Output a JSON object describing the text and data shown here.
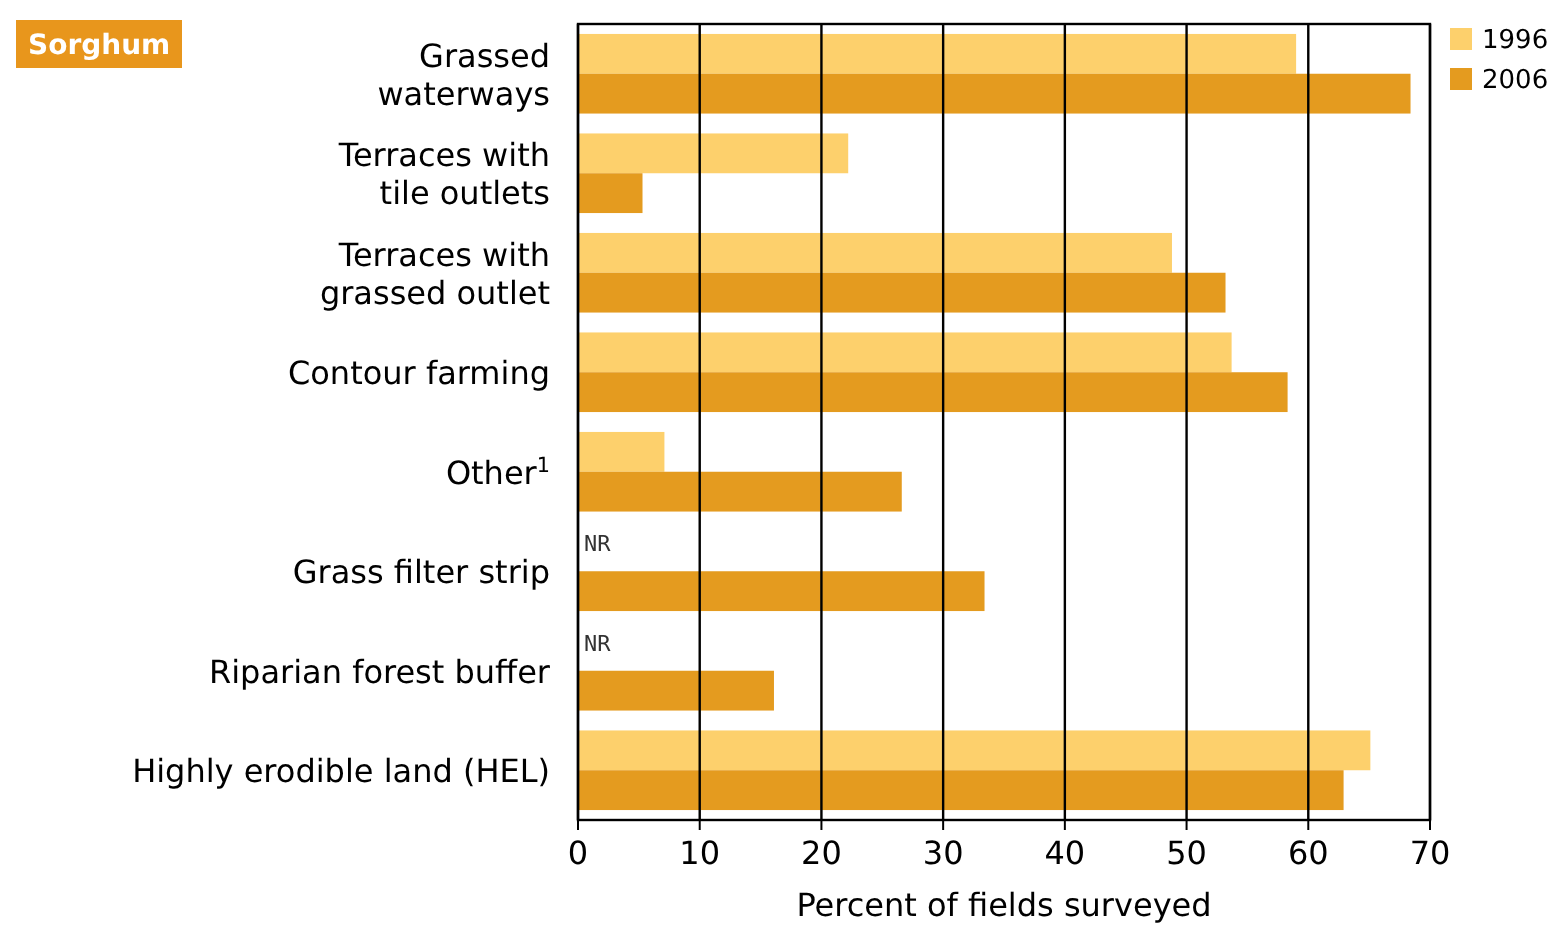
{
  "chart_data": {
    "type": "bar",
    "orientation": "horizontal",
    "title": "Sorghum",
    "xlabel": "Percent of fields surveyed",
    "categories": [
      "Grassed\nwaterways",
      "Terraces with\ntile outlets",
      "Terraces with\ngrassed outlet",
      "Contour farming",
      "Other$^{1}$",
      "Grass filter strip",
      "Riparian forest buffer",
      "Highly erodible land (HEL)"
    ],
    "series": [
      {
        "name": "1996",
        "color": "#fdd06c",
        "values": [
          59,
          22.2,
          48.8,
          53.7,
          7.1,
          null,
          null,
          65.1
        ],
        "value_labels": [
          null,
          null,
          null,
          null,
          null,
          "NR",
          "NR",
          null
        ]
      },
      {
        "name": "2006",
        "color": "#e49b1f",
        "values": [
          68.4,
          5.3,
          53.2,
          58.3,
          26.6,
          33.4,
          16.1,
          62.9
        ]
      }
    ],
    "xlim": [
      0,
      70
    ],
    "xticks": [
      0,
      10,
      20,
      30,
      40,
      50,
      60,
      70
    ],
    "grid": "x",
    "legend": "top right"
  }
}
